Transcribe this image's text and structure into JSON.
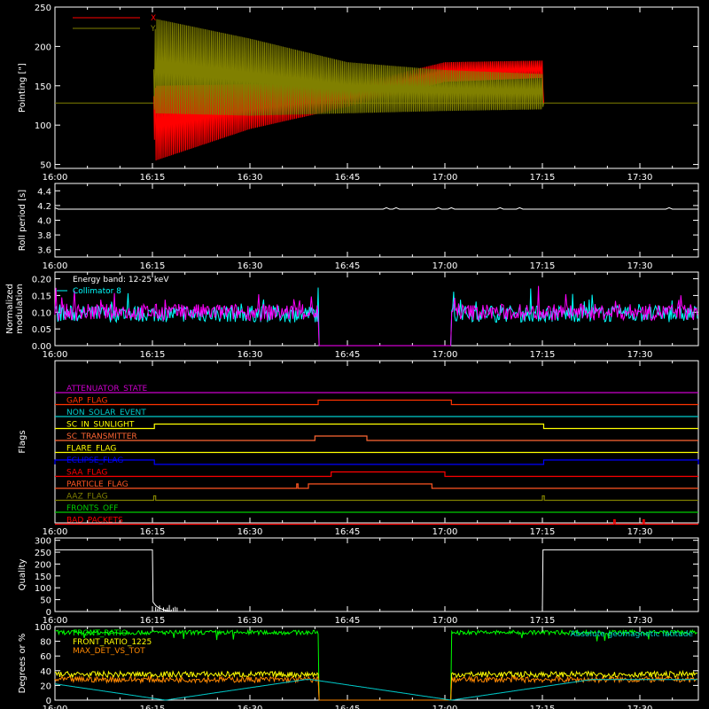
{
  "time_ticks": [
    "16:00",
    "16:15",
    "16:30",
    "16:45",
    "17:00",
    "17:15",
    "17:30"
  ],
  "chart_data": [
    {
      "panel": "pointing",
      "type": "line",
      "ylabel": "Pointing [\"]",
      "ylim": [
        45,
        250
      ],
      "yticks": [
        50,
        100,
        150,
        200,
        250
      ],
      "xlim_minutes": [
        0,
        99
      ],
      "series": [
        {
          "name": "X",
          "color": "#ff0000",
          "x": [
            0,
            15,
            15.5,
            30,
            45,
            60,
            75,
            75.2,
            99
          ],
          "low": [
            128,
            128,
            55,
            95,
            123,
            155,
            160,
            128,
            128
          ],
          "high": [
            128,
            128,
            150,
            152,
            150,
            180,
            182,
            128,
            128
          ]
        },
        {
          "name": "Y",
          "color": "#808000",
          "x": [
            0,
            15,
            15.5,
            30,
            45,
            60,
            75,
            75.2,
            99
          ],
          "low": [
            128,
            128,
            115,
            112,
            115,
            118,
            120,
            128,
            128
          ],
          "high": [
            128,
            128,
            235,
            210,
            180,
            170,
            165,
            128,
            128
          ]
        }
      ]
    },
    {
      "panel": "roll_period",
      "type": "line",
      "ylabel": "Roll period [s]",
      "ylim": [
        3.5,
        4.5
      ],
      "yticks": [
        "3.6",
        "3.8",
        "4.0",
        "4.2",
        "4.4"
      ],
      "series": [
        {
          "color": "#ffffff",
          "x": [
            0,
            99
          ],
          "y": [
            4.15,
            4.15
          ]
        }
      ]
    },
    {
      "panel": "modulation",
      "type": "line",
      "ylabel": "Normalized modulation",
      "ylim": [
        0,
        0.22
      ],
      "yticks": [
        "0.00",
        "0.05",
        "0.10",
        "0.15",
        "0.20"
      ],
      "annotation": "Energy band: 12-25 keV",
      "gaps": [
        [
          40.5,
          61
        ]
      ],
      "series": [
        {
          "name": "Collimator 8",
          "color": "#00ffff",
          "level": 0.095
        },
        {
          "name": "",
          "color": "#ff00ff",
          "level": 0.1
        }
      ]
    },
    {
      "panel": "flags",
      "type": "step",
      "ylabel": "Flags",
      "flags": [
        {
          "label": "ATTENUATOR_STATE",
          "color": "#cc00cc",
          "segments": []
        },
        {
          "label": "GAP_FLAG",
          "color": "#ff3300",
          "segments": [
            [
              40.5,
              61
            ]
          ]
        },
        {
          "label": "NON_SOLAR_EVENT",
          "color": "#00cccc",
          "segments": []
        },
        {
          "label": "SC_IN_SUNLIGHT",
          "color": "#ffff00",
          "segments": [
            [
              15.3,
              75.2
            ]
          ]
        },
        {
          "label": "SC_TRANSMITTER",
          "color": "#ff6633",
          "segments": [
            [
              40,
              48
            ]
          ]
        },
        {
          "label": "FLARE_FLAG",
          "color": "#ffff00",
          "segments": []
        },
        {
          "label": "ECLIPSE_FLAG",
          "color": "#0000ff",
          "segments": [
            [
              0,
              15.3
            ],
            [
              75.2,
              99
            ]
          ],
          "inverted": true
        },
        {
          "label": "SAA_FLAG",
          "color": "#ff0000",
          "segments": [
            [
              42.5,
              60
            ]
          ]
        },
        {
          "label": "PARTICLE_FLAG",
          "color": "#ff5522",
          "segments": [
            [
              37.2,
              37.4
            ],
            [
              39,
              58
            ]
          ]
        },
        {
          "label": "AAZ_FLAG",
          "color": "#808000",
          "segments": [
            [
              15.2,
              15.5
            ],
            [
              75,
              75.3
            ]
          ]
        },
        {
          "label": "FRONTS_OFF",
          "color": "#00cc00",
          "segments": []
        },
        {
          "label": "BAD_PACKETS",
          "color": "#ff0000",
          "segments": [
            [
              86,
              86.2
            ],
            [
              90.5,
              90.7
            ]
          ]
        }
      ]
    },
    {
      "panel": "quality",
      "type": "line",
      "ylabel": "Quality",
      "ylim": [
        0,
        310
      ],
      "yticks": [
        "0",
        "50",
        "100",
        "150",
        "200",
        "250",
        "300"
      ],
      "series": [
        {
          "color": "#ffffff",
          "x": [
            0,
            15,
            15.1,
            15.5,
            16,
            16.5,
            17,
            17.5,
            18,
            75,
            75.1,
            99
          ],
          "y": [
            260,
            260,
            40,
            25,
            15,
            10,
            5,
            3,
            0,
            0,
            260,
            260
          ]
        }
      ]
    },
    {
      "panel": "front_ratio",
      "type": "line",
      "ylabel": "Degrees or %",
      "ylim": [
        0,
        100
      ],
      "yticks": [
        "0",
        "20",
        "40",
        "60",
        "80",
        "100"
      ],
      "annotation": "Absolute geomagnetic latitude",
      "series": [
        {
          "name": "FRONT_RATIO",
          "color": "#00ff00",
          "level": 92,
          "gaps": [
            [
              40.5,
              61
            ]
          ]
        },
        {
          "name": "FRONT_RATIO_1225",
          "color": "#ffff00",
          "level": 35,
          "gaps": [
            [
              40.5,
              61
            ]
          ]
        },
        {
          "name": "MAX_DET_VS_TOT",
          "color": "#ff8800",
          "level": 28,
          "gaps": [
            [
              40.5,
              61
            ]
          ]
        },
        {
          "name": "",
          "color": "#00cccc",
          "geomag": true
        }
      ]
    }
  ]
}
